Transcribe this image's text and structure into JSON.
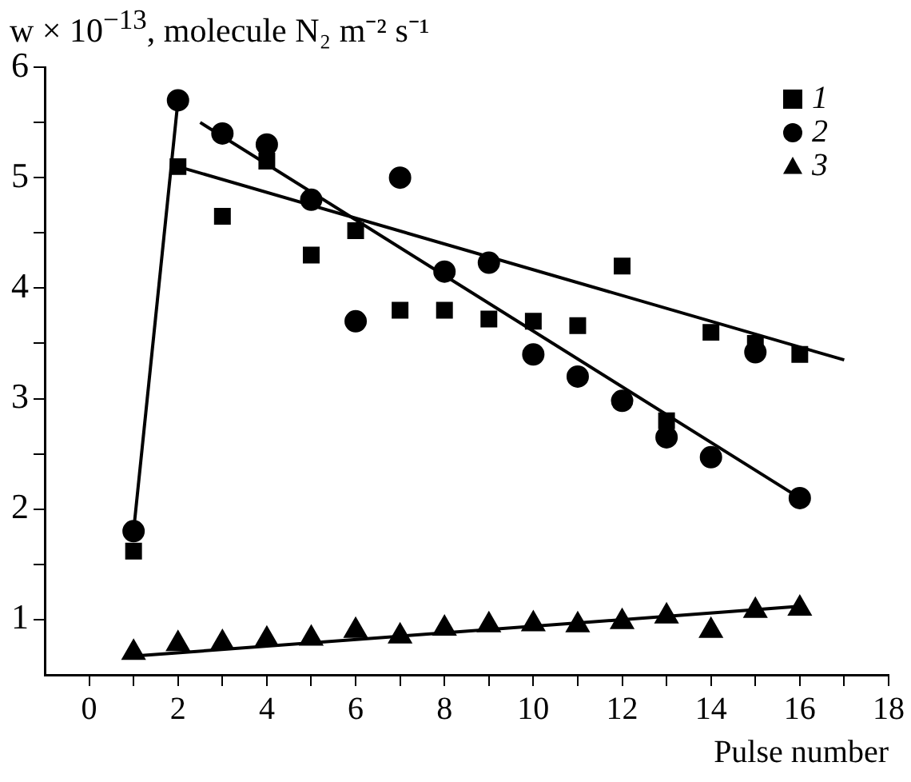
{
  "chart_data": {
    "type": "scatter",
    "ylabel": "w × 10$^{−13}$, molecule N₂ m⁻² s⁻¹",
    "xlabel": "Pulse number",
    "x": [
      1,
      2,
      3,
      4,
      5,
      6,
      7,
      8,
      9,
      10,
      11,
      12,
      13,
      14,
      15,
      16
    ],
    "xlim": [
      -1,
      18
    ],
    "xticks": [
      0,
      {
        "value": 1,
        "label": null
      },
      2,
      {
        "value": 3,
        "label": null
      },
      4,
      {
        "value": 5,
        "label": null
      },
      6,
      {
        "value": 7,
        "label": null
      },
      8,
      {
        "value": 9,
        "label": null
      },
      10,
      {
        "value": 11,
        "label": null
      },
      12,
      {
        "value": 13,
        "label": null
      },
      14,
      {
        "value": 15,
        "label": null
      },
      16,
      {
        "value": 17,
        "label": null
      },
      18
    ],
    "ylim": [
      0.5,
      6
    ],
    "yticks": [
      1,
      {
        "value": 1.5,
        "label": null
      },
      2,
      {
        "value": 2.5,
        "label": null
      },
      3,
      {
        "value": 3.5,
        "label": null
      },
      4,
      {
        "value": 4.5,
        "label": null
      },
      5,
      {
        "value": 5.5,
        "label": null
      },
      6
    ],
    "grid": false,
    "legend": "top right",
    "series": [
      {
        "name": "1",
        "color": "#000000",
        "marker": "square",
        "values": [
          1.62,
          5.1,
          4.65,
          5.15,
          4.3,
          4.52,
          3.8,
          3.8,
          3.72,
          3.7,
          3.66,
          4.2,
          2.8,
          3.6,
          3.5,
          3.4
        ]
      },
      {
        "name": "2",
        "color": "#000000",
        "marker": "circle",
        "values": [
          1.8,
          5.7,
          5.4,
          5.3,
          4.8,
          3.7,
          5.0,
          4.15,
          4.23,
          3.4,
          3.2,
          2.98,
          2.65,
          2.47,
          3.42,
          2.1
        ]
      },
      {
        "name": "3",
        "color": "#000000",
        "marker": "triangle",
        "values": [
          0.7,
          0.78,
          0.79,
          0.82,
          0.83,
          0.9,
          0.85,
          0.92,
          0.95,
          0.96,
          0.95,
          0.98,
          1.03,
          0.9,
          1.08,
          1.1
        ]
      },
      {
        "type": "line",
        "color": "#000000",
        "marker": "none",
        "x": [
          1,
          2
        ],
        "values": [
          1.8,
          5.7
        ]
      },
      {
        "type": "line",
        "color": "#000000",
        "marker": "none",
        "x": [
          2,
          17
        ],
        "values": [
          5.1,
          3.35
        ]
      },
      {
        "type": "line",
        "color": "#000000",
        "marker": "none",
        "x": [
          2.5,
          16
        ],
        "values": [
          5.5,
          2.1
        ]
      },
      {
        "type": "line",
        "color": "#000000",
        "marker": "none",
        "x": [
          1,
          16
        ],
        "values": [
          0.67,
          1.12
        ]
      }
    ]
  }
}
